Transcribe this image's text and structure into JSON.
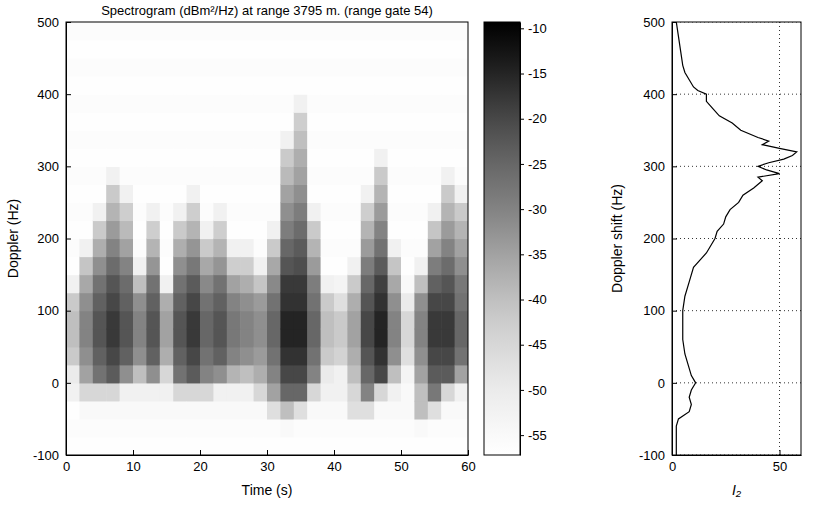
{
  "chart_data": [
    {
      "type": "heatmap",
      "title": "Spectrogram (dBm²/Hz) at range 3795 m. (range gate 54)",
      "x_label": "Time (s)",
      "y_label": "Doppler (Hz)",
      "xlim": [
        0,
        60
      ],
      "xticks": [
        0,
        10,
        20,
        30,
        40,
        50,
        60
      ],
      "ylim": [
        -100,
        500
      ],
      "yticks": [
        -100,
        0,
        100,
        200,
        300,
        400,
        500
      ],
      "zlim": [
        -57.2,
        -9.3
      ],
      "zticks": [
        -55,
        -50,
        -45,
        -40,
        -35,
        -30,
        -25,
        -20,
        -15,
        -10
      ],
      "x": [
        1,
        3,
        5,
        7,
        9,
        11,
        13,
        15,
        17,
        19,
        21,
        23,
        25,
        27,
        29,
        31,
        33,
        35,
        37,
        39,
        41,
        43,
        45,
        47,
        49,
        51,
        53,
        55,
        57,
        59
      ],
      "y": [
        -87.5,
        -62.5,
        -37.5,
        -12.5,
        12.5,
        37.5,
        62.5,
        87.5,
        112.5,
        137.5,
        162.5,
        187.5,
        212.5,
        237.5,
        262.5,
        287.5,
        312.5,
        337.5,
        362.5,
        387.5,
        412.5,
        437.5,
        462.5,
        487.5
      ],
      "z": [
        [
          -57,
          -56,
          -57,
          -52,
          -50,
          -42,
          -40,
          -40,
          -42,
          -52,
          -57,
          -56,
          -57,
          -56,
          -57,
          -56,
          -57,
          -56,
          -57,
          -56,
          -57,
          -56,
          -57,
          -56
        ],
        [
          -57,
          -56,
          -55,
          -45,
          -35,
          -32,
          -30,
          -30,
          -32,
          -36,
          -41,
          -52,
          -57,
          -56,
          -57,
          -56,
          -57,
          -56,
          -57,
          -56,
          -57,
          -56,
          -57,
          -56
        ],
        [
          -57,
          -56,
          -55,
          -45,
          -27,
          -24,
          -22,
          -22,
          -24,
          -27,
          -32,
          -37,
          -42,
          -52,
          -57,
          -56,
          -57,
          -56,
          -57,
          -56,
          -57,
          -56,
          -57,
          -56
        ],
        [
          -57,
          -56,
          -55,
          -45,
          -23,
          -20,
          -18,
          -18,
          -20,
          -22,
          -26,
          -30,
          -34,
          -38,
          -42,
          -52,
          -57,
          -56,
          -57,
          -56,
          -57,
          -56,
          -57,
          -56
        ],
        [
          -57,
          -56,
          -55,
          -52,
          -32,
          -24,
          -22,
          -22,
          -24,
          -26,
          -30,
          -35,
          -39,
          -43,
          -52,
          -56,
          -57,
          -56,
          -57,
          -56,
          -57,
          -56,
          -57,
          -56
        ],
        [
          -57,
          -56,
          -55,
          -52,
          -40,
          -32,
          -30,
          -30,
          -32,
          -40,
          -52,
          -56,
          -57,
          -56,
          -57,
          -56,
          -57,
          -56,
          -57,
          -56,
          -57,
          -56,
          -57,
          -56
        ],
        [
          -57,
          -56,
          -55,
          -52,
          -32,
          -24,
          -22,
          -22,
          -24,
          -27,
          -33,
          -38,
          -43,
          -52,
          -57,
          -56,
          -57,
          -56,
          -57,
          -56,
          -57,
          -56,
          -57,
          -56
        ],
        [
          -57,
          -56,
          -55,
          -52,
          -45,
          -37,
          -35,
          -35,
          -37,
          -52,
          -57,
          -56,
          -57,
          -56,
          -57,
          -56,
          -57,
          -56,
          -57,
          -56,
          -57,
          -56,
          -57,
          -56
        ],
        [
          -57,
          -56,
          -55,
          -45,
          -27,
          -24,
          -22,
          -22,
          -24,
          -27,
          -32,
          -37,
          -42,
          -52,
          -57,
          -56,
          -57,
          -56,
          -57,
          -56,
          -57,
          -56,
          -57,
          -56
        ],
        [
          -57,
          -56,
          -55,
          -45,
          -23,
          -20,
          -18,
          -18,
          -20,
          -23,
          -28,
          -33,
          -38,
          -43,
          -52,
          -56,
          -57,
          -56,
          -57,
          -56,
          -57,
          -56,
          -57,
          -56
        ],
        [
          -57,
          -56,
          -55,
          -45,
          -30,
          -27,
          -25,
          -25,
          -27,
          -31,
          -36,
          -42,
          -52,
          -56,
          -57,
          -56,
          -57,
          -56,
          -57,
          -56,
          -57,
          -56,
          -57,
          -56
        ],
        [
          -57,
          -56,
          -55,
          -52,
          -32,
          -24,
          -22,
          -22,
          -24,
          -27,
          -33,
          -38,
          -43,
          -52,
          -57,
          -56,
          -57,
          -56,
          -57,
          -56,
          -57,
          -56,
          -57,
          -56
        ],
        [
          -57,
          -56,
          -55,
          -52,
          -38,
          -30,
          -28,
          -28,
          -30,
          -35,
          -43,
          -52,
          -57,
          -56,
          -57,
          -56,
          -57,
          -56,
          -57,
          -56,
          -57,
          -56,
          -57,
          -56
        ],
        [
          -57,
          -56,
          -55,
          -52,
          -40,
          -32,
          -30,
          -30,
          -32,
          -37,
          -43,
          -52,
          -57,
          -56,
          -57,
          -56,
          -57,
          -56,
          -57,
          -56,
          -57,
          -56,
          -57,
          -56
        ],
        [
          -57,
          -56,
          -55,
          -45,
          -37,
          -34,
          -32,
          -32,
          -34,
          -41,
          -52,
          -56,
          -57,
          -56,
          -57,
          -56,
          -57,
          -56,
          -57,
          -56,
          -57,
          -56,
          -57,
          -56
        ],
        [
          -57,
          -56,
          -47,
          -35,
          -30,
          -27,
          -25,
          -25,
          -27,
          -31,
          -36,
          -42,
          -52,
          -56,
          -57,
          -56,
          -57,
          -56,
          -57,
          -56,
          -57,
          -56,
          -57,
          -56
        ],
        [
          -57,
          -55,
          -40,
          -25,
          -20,
          -17,
          -15,
          -15,
          -17,
          -18,
          -22,
          -25,
          -29,
          -32,
          -35,
          -39,
          -42,
          -52,
          -57,
          -56,
          -57,
          -56,
          -57,
          -56
        ],
        [
          -57,
          -56,
          -47,
          -25,
          -20,
          -17,
          -15,
          -15,
          -17,
          -18,
          -21,
          -23,
          -26,
          -29,
          -32,
          -35,
          -37,
          -40,
          -43,
          -52,
          -57,
          -56,
          -57,
          -56
        ],
        [
          -57,
          -56,
          -55,
          -45,
          -30,
          -27,
          -25,
          -25,
          -27,
          -29,
          -34,
          -38,
          -42,
          -52,
          -57,
          -56,
          -57,
          -56,
          -57,
          -56,
          -57,
          -56,
          -57,
          -56
        ],
        [
          -57,
          -56,
          -55,
          -52,
          -50,
          -42,
          -40,
          -40,
          -42,
          -52,
          -57,
          -56,
          -57,
          -56,
          -57,
          -56,
          -57,
          -56,
          -57,
          -56,
          -57,
          -56,
          -57,
          -56
        ],
        [
          -57,
          -56,
          -55,
          -52,
          -52,
          -44,
          -42,
          -42,
          -47,
          -53,
          -57,
          -56,
          -57,
          -56,
          -57,
          -56,
          -57,
          -56,
          -57,
          -56,
          -57,
          -56,
          -57,
          -56
        ],
        [
          -57,
          -56,
          -47,
          -45,
          -40,
          -37,
          -35,
          -35,
          -37,
          -42,
          -52,
          -56,
          -57,
          -56,
          -57,
          -56,
          -57,
          -56,
          -57,
          -56,
          -57,
          -56,
          -57,
          -56
        ],
        [
          -57,
          -56,
          -47,
          -30,
          -25,
          -22,
          -20,
          -20,
          -22,
          -25,
          -29,
          -34,
          -38,
          -43,
          -52,
          -56,
          -57,
          -56,
          -57,
          -56,
          -57,
          -56,
          -57,
          -56
        ],
        [
          -57,
          -56,
          -55,
          -45,
          -20,
          -17,
          -15,
          -15,
          -17,
          -19,
          -23,
          -27,
          -30,
          -34,
          -38,
          -42,
          -52,
          -56,
          -57,
          -56,
          -57,
          -56,
          -57,
          -56
        ],
        [
          -57,
          -56,
          -55,
          -52,
          -40,
          -32,
          -30,
          -30,
          -32,
          -36,
          -41,
          -52,
          -57,
          -56,
          -57,
          -56,
          -57,
          -56,
          -57,
          -56,
          -57,
          -56,
          -57,
          -56
        ],
        [
          -57,
          -56,
          -55,
          -55,
          -53,
          -47,
          -45,
          -45,
          -50,
          -55,
          -57,
          -56,
          -57,
          -56,
          -57,
          -56,
          -57,
          -56,
          -57,
          -56,
          -57,
          -56,
          -57,
          -56
        ],
        [
          -57,
          -55,
          -40,
          -40,
          -35,
          -32,
          -30,
          -30,
          -32,
          -40,
          -52,
          -56,
          -57,
          -56,
          -57,
          -56,
          -57,
          -56,
          -57,
          -56,
          -57,
          -56,
          -57,
          -56
        ],
        [
          -57,
          -56,
          -47,
          -28,
          -23,
          -20,
          -18,
          -18,
          -20,
          -24,
          -29,
          -35,
          -41,
          -52,
          -57,
          -56,
          -57,
          -56,
          -57,
          -56,
          -57,
          -56,
          -57,
          -56
        ],
        [
          -57,
          -56,
          -55,
          -45,
          -23,
          -20,
          -18,
          -18,
          -20,
          -22,
          -26,
          -30,
          -34,
          -38,
          -42,
          -52,
          -57,
          -56,
          -57,
          -56,
          -57,
          -56,
          -57,
          -56
        ],
        [
          -57,
          -56,
          -55,
          -52,
          -35,
          -27,
          -25,
          -25,
          -27,
          -28,
          -32,
          -35,
          -38,
          -42,
          -52,
          -56,
          -57,
          -56,
          -57,
          -56,
          -57,
          -56,
          -57,
          -56
        ]
      ]
    },
    {
      "type": "line",
      "orientation": "horizontal",
      "x_label": "I₂",
      "y_label": "Doppler shift (Hz)",
      "xlim": [
        0,
        60
      ],
      "xticks": [
        0,
        50
      ],
      "ylim": [
        -100,
        500
      ],
      "yticks": [
        -100,
        0,
        100,
        200,
        300,
        400,
        500
      ],
      "grid": true,
      "series": [
        {
          "color": "#000000",
          "x": [
            -100,
            -80,
            -60,
            -50,
            -40,
            -30,
            -20,
            -10,
            0,
            10,
            20,
            40,
            60,
            80,
            100,
            120,
            140,
            160,
            170,
            180,
            190,
            200,
            210,
            220,
            230,
            240,
            250,
            260,
            270,
            280,
            285,
            290,
            295,
            300,
            305,
            310,
            315,
            320,
            325,
            330,
            335,
            340,
            350,
            360,
            370,
            380,
            390,
            400,
            405,
            410,
            420,
            430,
            440,
            460,
            480,
            500
          ],
          "values": [
            2,
            2,
            2,
            3,
            8,
            9,
            8,
            9,
            11,
            9,
            8,
            6,
            5,
            5,
            5,
            6,
            8,
            10,
            13,
            16,
            18,
            20,
            21,
            24,
            25,
            27,
            31,
            33,
            38,
            42,
            40,
            50,
            44,
            40,
            45,
            52,
            56,
            58,
            50,
            42,
            45,
            40,
            32,
            28,
            22,
            19,
            16,
            16,
            12,
            10,
            8,
            6,
            5,
            4,
            3,
            2
          ]
        }
      ]
    }
  ]
}
